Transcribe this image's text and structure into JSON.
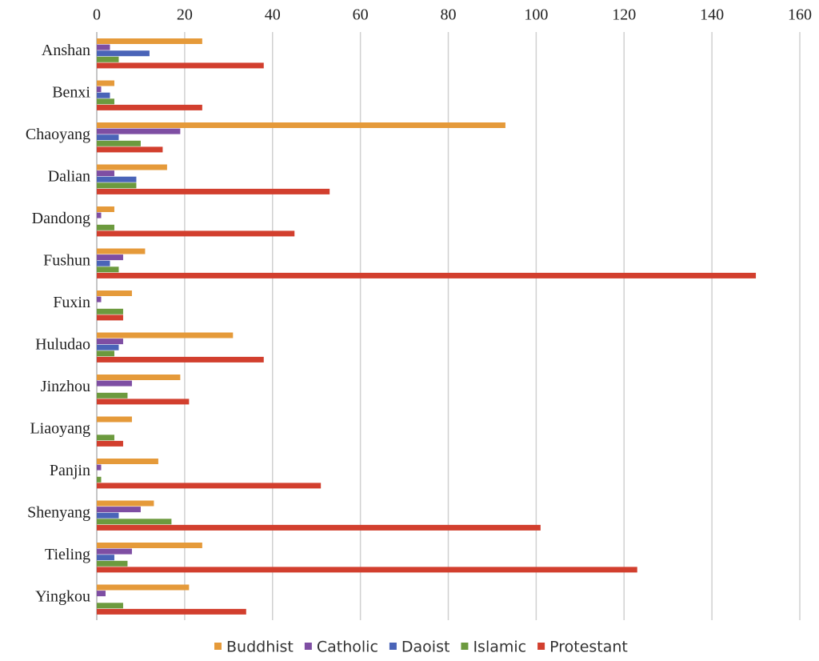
{
  "chart_data": {
    "type": "hbar",
    "categories": [
      "Anshan",
      "Benxi",
      "Chaoyang",
      "Dalian",
      "Dandong",
      "Fushun",
      "Fuxin",
      "Huludao",
      "Jinzhou",
      "Liaoyang",
      "Panjin",
      "Shenyang",
      "Tieling",
      "Yingkou"
    ],
    "series": [
      {
        "name": "Buddhist",
        "color": "#e59a3a",
        "values": [
          24,
          4,
          93,
          16,
          4,
          11,
          8,
          31,
          19,
          8,
          14,
          13,
          24,
          21
        ]
      },
      {
        "name": "Catholic",
        "color": "#7e4ea3",
        "values": [
          3,
          1,
          19,
          4,
          1,
          6,
          1,
          6,
          8,
          0,
          1,
          10,
          8,
          2
        ]
      },
      {
        "name": "Daoist",
        "color": "#4a64b8",
        "values": [
          12,
          3,
          5,
          9,
          0,
          3,
          0,
          5,
          0,
          0,
          0,
          5,
          4,
          0
        ]
      },
      {
        "name": "Islamic",
        "color": "#6c9a3e",
        "values": [
          5,
          4,
          10,
          9,
          4,
          5,
          6,
          4,
          7,
          4,
          1,
          17,
          7,
          6
        ]
      },
      {
        "name": "Protestant",
        "color": "#d23f2e",
        "values": [
          38,
          24,
          15,
          53,
          45,
          150,
          6,
          38,
          21,
          6,
          51,
          101,
          123,
          34
        ]
      }
    ],
    "xlim": [
      0,
      160
    ],
    "xticks": [
      0,
      20,
      40,
      60,
      80,
      100,
      120,
      140,
      160
    ],
    "grid": true,
    "legend": "bottom"
  }
}
